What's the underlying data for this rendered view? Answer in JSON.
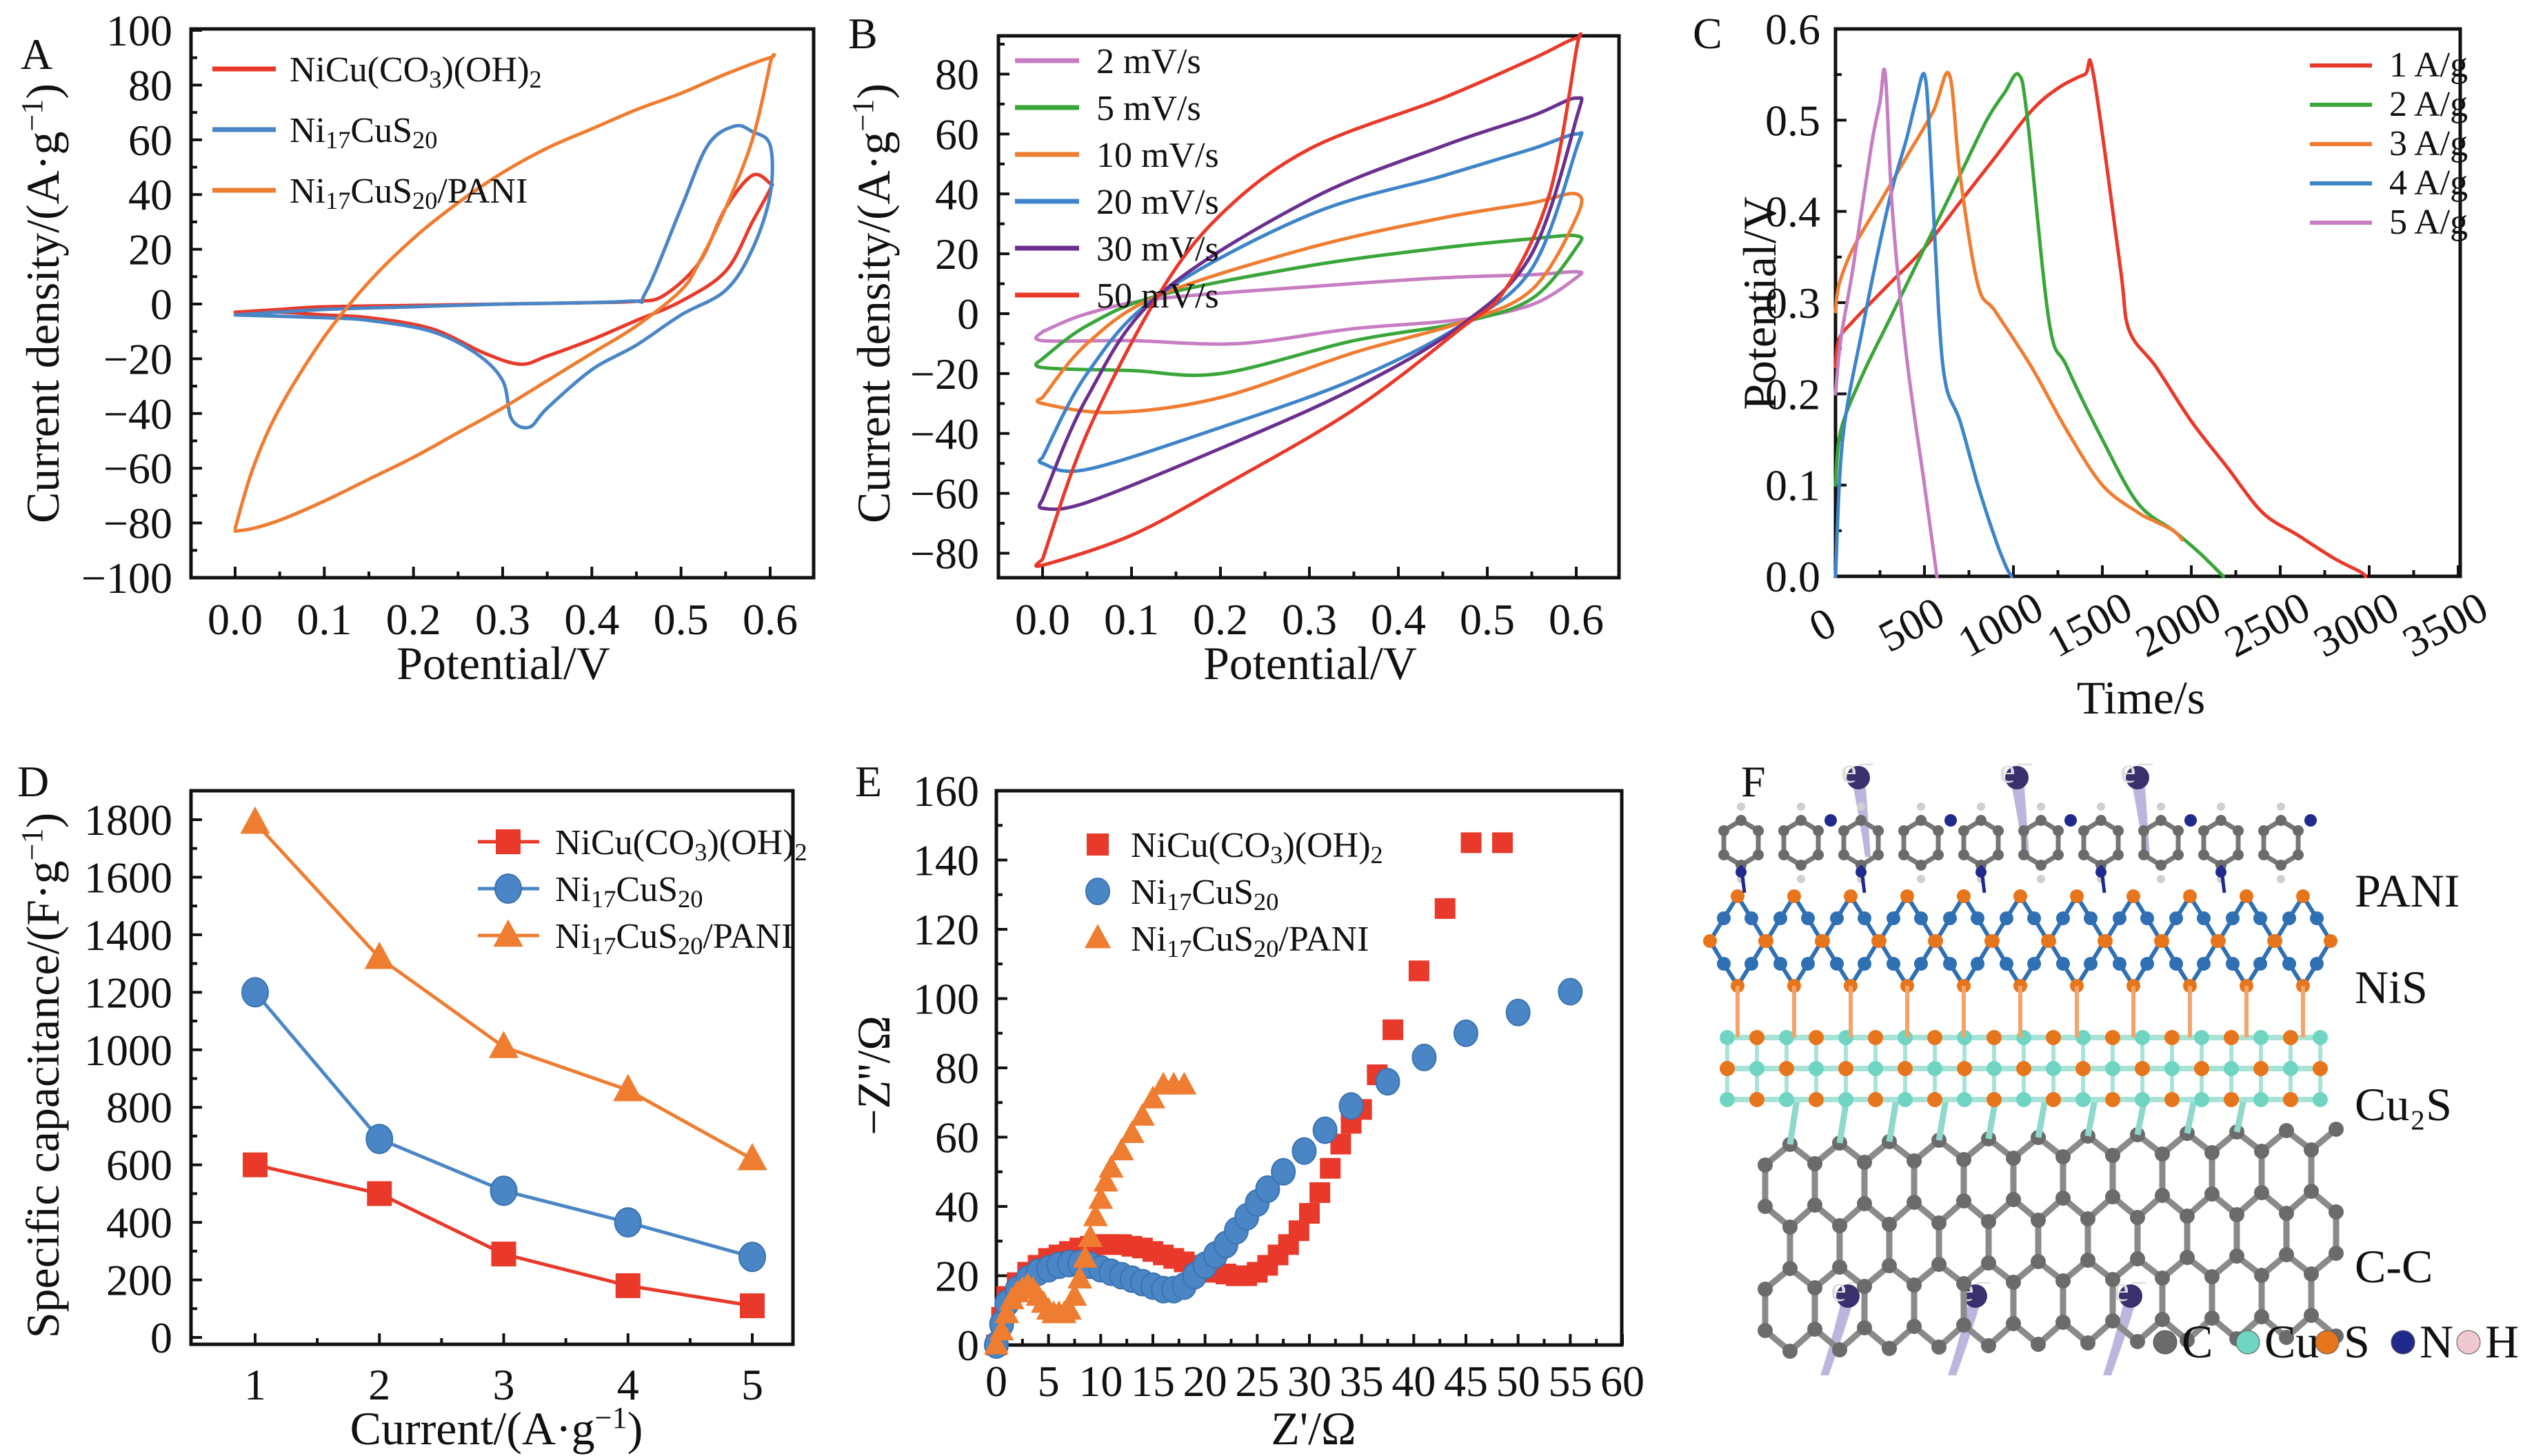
{
  "figure": {
    "panel_labels": [
      "A",
      "B",
      "C",
      "D",
      "E",
      "F"
    ]
  },
  "chart_data": [
    {
      "id": "A",
      "type": "line",
      "title": "",
      "xlabel": "Potential/V",
      "ylabel": "Current density/(A·g⁻¹)",
      "xlim": [
        0.0,
        0.6
      ],
      "ylim": [
        -100,
        100
      ],
      "xticks": [
        "0.0",
        "0.1",
        "0.2",
        "0.3",
        "0.4",
        "0.5",
        "0.6"
      ],
      "yticks": [
        "100",
        "80",
        "60",
        "40",
        "20",
        "0",
        "−20",
        "−40",
        "−60",
        "−80",
        "−100"
      ],
      "legend_position": "top-left",
      "series": [
        {
          "name": "NiCu(CO₃)(OH)₂",
          "color": "#e8392a",
          "x": [
            0.0,
            0.05,
            0.1,
            0.2,
            0.3,
            0.4,
            0.45,
            0.48,
            0.52,
            0.55,
            0.58,
            0.6,
            0.6,
            0.58,
            0.55,
            0.5,
            0.45,
            0.4,
            0.35,
            0.32,
            0.28,
            0.22,
            0.15,
            0.1,
            0.05,
            0.0
          ],
          "y": [
            -3,
            -2,
            -1,
            -0.5,
            0,
            0.5,
            1,
            3,
            15,
            35,
            47,
            44,
            42,
            30,
            12,
            1,
            -6,
            -13,
            -19,
            -22,
            -18,
            -9,
            -5,
            -4,
            -3,
            -3
          ]
        },
        {
          "name": "Ni₁₇CuS₂₀",
          "color": "#4a86c5",
          "x": [
            0.0,
            0.1,
            0.2,
            0.3,
            0.44,
            0.46,
            0.5,
            0.53,
            0.56,
            0.58,
            0.6,
            0.6,
            0.58,
            0.55,
            0.5,
            0.45,
            0.4,
            0.35,
            0.33,
            0.31,
            0.3,
            0.27,
            0.22,
            0.15,
            0.1,
            0.0
          ],
          "y": [
            -4,
            -2,
            -1,
            0,
            1,
            4,
            35,
            58,
            65,
            63,
            58,
            40,
            20,
            5,
            -4,
            -15,
            -24,
            -38,
            -45,
            -42,
            -28,
            -18,
            -10,
            -6,
            -5,
            -4
          ]
        },
        {
          "name": "Ni₁₇CuS₂₀/PANI",
          "color": "#ef7d31",
          "x": [
            0.0,
            0.02,
            0.05,
            0.1,
            0.15,
            0.2,
            0.25,
            0.3,
            0.35,
            0.4,
            0.45,
            0.5,
            0.55,
            0.6,
            0.6,
            0.58,
            0.55,
            0.52,
            0.5,
            0.45,
            0.4,
            0.35,
            0.3,
            0.25,
            0.2,
            0.15,
            0.1,
            0.05,
            0.02,
            0.0
          ],
          "y": [
            -82,
            -60,
            -38,
            -12,
            8,
            24,
            37,
            48,
            57,
            64,
            71,
            77,
            84,
            90,
            88,
            60,
            35,
            15,
            5,
            -8,
            -18,
            -28,
            -38,
            -47,
            -56,
            -64,
            -72,
            -79,
            -82,
            -83
          ]
        }
      ]
    },
    {
      "id": "B",
      "type": "line",
      "title": "",
      "xlabel": "Potential/V",
      "ylabel": "Current density/(A·g⁻¹)",
      "xlim": [
        0.0,
        0.6
      ],
      "ylim": [
        -90,
        95
      ],
      "xticks": [
        "0.0",
        "0.1",
        "0.2",
        "0.3",
        "0.4",
        "0.5",
        "0.6"
      ],
      "yticks": [
        "80",
        "60",
        "40",
        "20",
        "0",
        "−20",
        "−40",
        "−60",
        "−80"
      ],
      "legend_position": "top-left",
      "series": [
        {
          "name": "2 mV/s",
          "color": "#c77dc1",
          "upper_x": [
            0.0,
            0.05,
            0.13,
            0.3,
            0.45,
            0.55,
            0.6
          ],
          "upper_y": [
            -6,
            0,
            5,
            9,
            12,
            13,
            14
          ],
          "lower_x": [
            0.6,
            0.55,
            0.47,
            0.35,
            0.22,
            0.1,
            0.0
          ],
          "lower_y": [
            12,
            3,
            -2,
            -5,
            -10,
            -9,
            -9
          ]
        },
        {
          "name": "5 mV/s",
          "color": "#3aa63a",
          "upper_x": [
            0.0,
            0.05,
            0.13,
            0.3,
            0.45,
            0.55,
            0.6
          ],
          "upper_y": [
            -15,
            -4,
            6,
            16,
            22,
            25,
            26
          ],
          "lower_x": [
            0.6,
            0.55,
            0.47,
            0.35,
            0.2,
            0.1,
            0.0
          ],
          "lower_y": [
            22,
            5,
            -3,
            -9,
            -20,
            -19,
            -18
          ]
        },
        {
          "name": "10 mV/s",
          "color": "#ef7d31",
          "upper_x": [
            0.0,
            0.05,
            0.13,
            0.3,
            0.45,
            0.55,
            0.6
          ],
          "upper_y": [
            -28,
            -10,
            6,
            22,
            32,
            37,
            40
          ],
          "lower_x": [
            0.6,
            0.55,
            0.47,
            0.35,
            0.2,
            0.08,
            0.0
          ],
          "lower_y": [
            32,
            8,
            -3,
            -13,
            -28,
            -33,
            -30
          ]
        },
        {
          "name": "20 mV/s",
          "color": "#3e84c8",
          "upper_x": [
            0.0,
            0.05,
            0.13,
            0.3,
            0.45,
            0.55,
            0.6
          ],
          "upper_y": [
            -48,
            -20,
            6,
            33,
            46,
            55,
            60
          ],
          "lower_x": [
            0.6,
            0.55,
            0.47,
            0.35,
            0.2,
            0.05,
            0.0
          ],
          "lower_y": [
            55,
            15,
            -4,
            -22,
            -38,
            -52,
            -50
          ]
        },
        {
          "name": "30 mV/s",
          "color": "#6a2f8f",
          "upper_x": [
            0.0,
            0.05,
            0.13,
            0.3,
            0.45,
            0.55,
            0.6
          ],
          "upper_y": [
            -62,
            -28,
            6,
            38,
            56,
            66,
            72
          ],
          "lower_x": [
            0.6,
            0.55,
            0.47,
            0.35,
            0.2,
            0.05,
            0.0
          ],
          "lower_y": [
            65,
            20,
            -4,
            -25,
            -45,
            -63,
            -65
          ]
        },
        {
          "name": "50 mV/s",
          "color": "#e8392a",
          "upper_x": [
            0.0,
            0.05,
            0.13,
            0.2,
            0.3,
            0.45,
            0.55,
            0.6
          ],
          "upper_y": [
            -82,
            -40,
            6,
            33,
            55,
            72,
            85,
            92
          ],
          "lower_x": [
            0.6,
            0.57,
            0.52,
            0.47,
            0.35,
            0.2,
            0.1,
            0.0
          ],
          "lower_y": [
            88,
            40,
            8,
            -5,
            -32,
            -58,
            -74,
            -84
          ]
        }
      ]
    },
    {
      "id": "C",
      "type": "line",
      "title": "",
      "xlabel": "Time/s",
      "ylabel": "Potential/V",
      "xlim": [
        0,
        3500
      ],
      "ylim": [
        0.0,
        0.6
      ],
      "xticks": [
        "0",
        "500",
        "1000",
        "1500",
        "2000",
        "2500",
        "3000",
        "3500"
      ],
      "yticks": [
        "0.6",
        "0.5",
        "0.4",
        "0.3",
        "0.2",
        "0.1",
        "0.0"
      ],
      "legend_position": "top-right",
      "series": [
        {
          "name": "1 A/g",
          "color": "#e8392a",
          "x": [
            0,
            20,
            100,
            300,
            500,
            700,
            900,
            1100,
            1250,
            1400,
            1450,
            1600,
            1650,
            1800,
            2000,
            2200,
            2400,
            2600,
            2800,
            2950,
            2980
          ],
          "y": [
            0.23,
            0.26,
            0.28,
            0.32,
            0.36,
            0.41,
            0.46,
            0.51,
            0.535,
            0.55,
            0.55,
            0.34,
            0.27,
            0.23,
            0.17,
            0.12,
            0.07,
            0.045,
            0.02,
            0.005,
            0.0
          ]
        },
        {
          "name": "2 A/g",
          "color": "#3aa63a",
          "x": [
            0,
            30,
            150,
            300,
            500,
            700,
            850,
            950,
            1030,
            1080,
            1200,
            1300,
            1500,
            1700,
            1900,
            2050,
            2180
          ],
          "y": [
            0.1,
            0.16,
            0.22,
            0.28,
            0.36,
            0.44,
            0.5,
            0.53,
            0.55,
            0.5,
            0.28,
            0.23,
            0.15,
            0.08,
            0.05,
            0.025,
            0.0
          ]
        },
        {
          "name": "3 A/g",
          "color": "#ef7d31",
          "x": [
            0,
            20,
            100,
            250,
            400,
            550,
            640,
            700,
            800,
            900,
            1100,
            1300,
            1500,
            1700,
            1800,
            1900,
            1950
          ],
          "y": [
            0.29,
            0.32,
            0.36,
            0.41,
            0.46,
            0.51,
            0.55,
            0.44,
            0.32,
            0.29,
            0.23,
            0.16,
            0.1,
            0.07,
            0.06,
            0.05,
            0.04
          ]
        },
        {
          "name": "4 A/g",
          "color": "#3e84c8",
          "x": [
            0,
            40,
            150,
            300,
            400,
            450,
            500,
            530,
            580,
            620,
            700,
            800,
            900,
            960,
            990
          ],
          "y": [
            0.0,
            0.15,
            0.27,
            0.41,
            0.48,
            0.52,
            0.55,
            0.48,
            0.29,
            0.21,
            0.17,
            0.1,
            0.04,
            0.01,
            0.0
          ]
        },
        {
          "name": "5 A/g",
          "color": "#c77dc1",
          "x": [
            0,
            30,
            100,
            200,
            250,
            280,
            320,
            400,
            500,
            570
          ],
          "y": [
            0.2,
            0.26,
            0.34,
            0.47,
            0.52,
            0.55,
            0.4,
            0.24,
            0.1,
            0.0
          ]
        }
      ]
    },
    {
      "id": "D",
      "type": "line",
      "title": "",
      "xlabel": "Current/(A·g⁻¹)",
      "ylabel": "Specific capacitance/(F·g⁻¹)",
      "xlim": [
        0.5,
        5.5
      ],
      "ylim": [
        0,
        1800
      ],
      "categories": [
        1,
        2,
        3,
        4,
        5
      ],
      "xticks": [
        "1",
        "2",
        "3",
        "4",
        "5"
      ],
      "yticks": [
        "1800",
        "1600",
        "1400",
        "1200",
        "1000",
        "800",
        "600",
        "400",
        "200",
        "0"
      ],
      "legend_position": "top-right",
      "series": [
        {
          "name": "NiCu(CO₃)(OH)₂",
          "color": "#e8392a",
          "marker": "square",
          "values": [
            600,
            500,
            290,
            180,
            110
          ]
        },
        {
          "name": "Ni₁₇CuS₂₀",
          "color": "#4a86c5",
          "marker": "circle",
          "values": [
            1200,
            690,
            510,
            400,
            280
          ]
        },
        {
          "name": "Ni₁₇CuS₂₀/PANI",
          "color": "#ef7d31",
          "marker": "triangle",
          "values": [
            1790,
            1320,
            1010,
            860,
            620
          ]
        }
      ]
    },
    {
      "id": "E",
      "type": "scatter",
      "title": "",
      "xlabel": "Z'/Ω",
      "ylabel": "−Z''/Ω",
      "xlim": [
        0,
        60
      ],
      "ylim": [
        0,
        160
      ],
      "xticks": [
        "0",
        "5",
        "10",
        "15",
        "20",
        "25",
        "30",
        "35",
        "40",
        "45",
        "50",
        "55",
        "60"
      ],
      "yticks": [
        "160",
        "140",
        "120",
        "100",
        "80",
        "60",
        "40",
        "20",
        "0"
      ],
      "legend_position": "top-left",
      "series": [
        {
          "name": "NiCu(CO₃)(OH)₂",
          "color": "#e8392a",
          "marker": "square",
          "x": [
            0,
            0.5,
            1,
            2,
            3,
            4,
            5,
            6,
            7,
            8,
            9,
            10,
            11,
            12,
            13,
            14,
            15,
            16,
            17,
            18,
            19,
            20,
            21,
            22,
            23,
            24,
            25,
            26,
            27,
            28,
            29,
            30,
            31,
            32,
            33,
            34,
            35,
            36.5,
            38,
            40.5,
            43,
            45.5,
            48.5
          ],
          "y": [
            0,
            8,
            14,
            18,
            21,
            23,
            25,
            26,
            27,
            28,
            28.5,
            29,
            29,
            29,
            28.5,
            28,
            27,
            26,
            25,
            24,
            23,
            22,
            21,
            20.5,
            20,
            20,
            21,
            23,
            26,
            29,
            33,
            38,
            44,
            51,
            58,
            64,
            68,
            78,
            91,
            108,
            126,
            145,
            145
          ]
        },
        {
          "name": "Ni₁₇CuS₂₀",
          "color": "#4a86c5",
          "marker": "circle",
          "x": [
            0,
            0.5,
            1,
            2,
            3,
            4,
            5,
            6,
            7,
            8,
            9,
            10,
            11,
            12,
            13,
            14,
            15,
            16,
            17,
            18,
            19,
            20,
            21,
            22,
            23,
            24,
            25,
            26,
            27.5,
            29.5,
            31.5,
            34,
            37.5,
            41,
            45,
            50,
            55
          ],
          "y": [
            0,
            6,
            12,
            16,
            19,
            21,
            22,
            23,
            23.5,
            23.5,
            23,
            22,
            21,
            20,
            19,
            18,
            17,
            16,
            16,
            17,
            20,
            23,
            26,
            29,
            33,
            37,
            41,
            45,
            50,
            56,
            62,
            69,
            76,
            83,
            90,
            96,
            102
          ]
        },
        {
          "name": "Ni₁₇CuS₂₀/PANI",
          "color": "#ef7d31",
          "marker": "triangle",
          "x": [
            0,
            0.5,
            1,
            1.5,
            2,
            2.5,
            3,
            3.5,
            4,
            4.5,
            5,
            5.5,
            6,
            6.5,
            7,
            7.5,
            8,
            8.5,
            9,
            9.5,
            10,
            10.5,
            11,
            12,
            13,
            14,
            15,
            16,
            17,
            18
          ],
          "y": [
            0,
            4,
            9,
            13,
            15,
            16,
            17,
            16,
            14,
            12,
            10,
            9,
            9,
            9,
            10,
            14,
            19,
            25,
            31,
            37,
            42,
            47,
            51,
            56,
            61,
            66,
            71,
            75,
            75,
            75
          ]
        }
      ]
    }
  ],
  "diagram_F": {
    "layer_labels": [
      "PANI",
      "NiS",
      "Cu₂S",
      "C-C"
    ],
    "electron_label": "e⁻",
    "legend": [
      {
        "label": "C",
        "color": "#6b6b6b"
      },
      {
        "label": "Cu",
        "color": "#6fd5c2"
      },
      {
        "label": "S",
        "color": "#e7751c"
      },
      {
        "label": "N",
        "color": "#1f2a8c"
      },
      {
        "label": "H",
        "color": "#f0c8cf"
      }
    ],
    "colors": {
      "bond_gray": "#8a8a8a",
      "ni_blue": "#2f6fb3",
      "electron": "#6f5bb5"
    }
  }
}
